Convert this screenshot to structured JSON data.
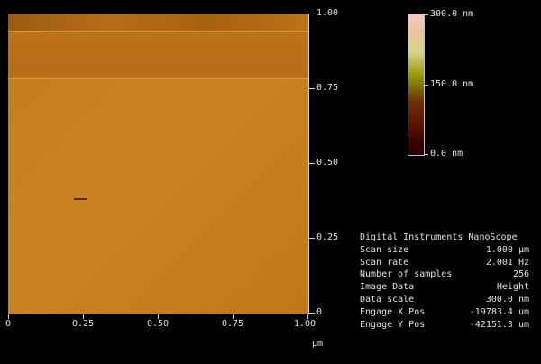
{
  "colorbar": {
    "max_label": "300.0 nm",
    "mid_label": "150.0 nm",
    "min_label": "0.0 nm"
  },
  "y_axis": {
    "ticks": [
      "1.00",
      "0.75",
      "0.50",
      "0.25",
      "0"
    ]
  },
  "x_axis": {
    "ticks": [
      "0",
      "0.25",
      "0.50",
      "0.75",
      "1.00"
    ],
    "unit": "µm"
  },
  "info": {
    "title": "Digital Instruments NanoScope",
    "rows": [
      {
        "label": "Scan size",
        "value": "1.000 µm"
      },
      {
        "label": "Scan rate",
        "value": "2.001 Hz"
      },
      {
        "label": "Number of samples",
        "value": "256"
      },
      {
        "label": "Image Data",
        "value": "Height"
      },
      {
        "label": "Data scale",
        "value": "300.0 nm"
      },
      {
        "label": "Engage X Pos",
        "value": "-19783.4 um"
      },
      {
        "label": "Engage Y Pos",
        "value": "-42151.3 um"
      }
    ]
  }
}
